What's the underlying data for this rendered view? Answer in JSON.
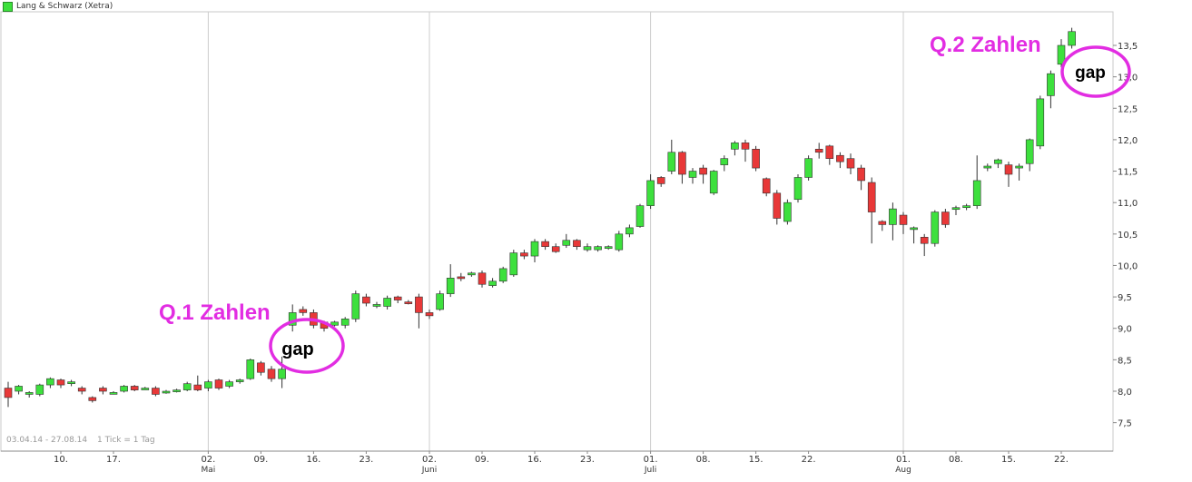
{
  "chart_data": {
    "type": "candlestick",
    "title": "",
    "legend": [
      "Lang & Schwarz (Xetra)"
    ],
    "colors": {
      "up": "#3de03d",
      "down": "#e83838",
      "wick": "#333333",
      "grid": "#cccccc",
      "annotation": "#e22de2"
    },
    "ylim": [
      7.2,
      13.8
    ],
    "yticks": [
      7.5,
      8.0,
      8.5,
      9.0,
      9.5,
      10.0,
      10.5,
      11.0,
      11.5,
      12.0,
      12.5,
      13.0,
      13.5
    ],
    "ytick_labels": [
      "7,5",
      "8,0",
      "8,5",
      "9,0",
      "9,5",
      "10,0",
      "10,5",
      "11,0",
      "11,5",
      "12,0",
      "12,5",
      "13,0",
      "13,5"
    ],
    "x_tick_labels": [
      {
        "day": "10.",
        "month": ""
      },
      {
        "day": "17.",
        "month": ""
      },
      {
        "day": "02.",
        "month": "Mai"
      },
      {
        "day": "09.",
        "month": ""
      },
      {
        "day": "16.",
        "month": ""
      },
      {
        "day": "23.",
        "month": ""
      },
      {
        "day": "02.",
        "month": "Juni"
      },
      {
        "day": "09.",
        "month": ""
      },
      {
        "day": "16.",
        "month": ""
      },
      {
        "day": "23.",
        "month": ""
      },
      {
        "day": "01.",
        "month": "Juli"
      },
      {
        "day": "08.",
        "month": ""
      },
      {
        "day": "15.",
        "month": ""
      },
      {
        "day": "22.",
        "month": ""
      },
      {
        "day": "01.",
        "month": "Aug"
      },
      {
        "day": "08.",
        "month": ""
      },
      {
        "day": "15.",
        "month": ""
      },
      {
        "day": "22.",
        "month": ""
      }
    ],
    "candles": [
      [
        8.05,
        7.9,
        8.15,
        7.75
      ],
      [
        8.0,
        8.08,
        8.1,
        7.95
      ],
      [
        7.95,
        7.98,
        8.0,
        7.9
      ],
      [
        7.95,
        8.1,
        8.12,
        7.92
      ],
      [
        8.1,
        8.2,
        8.22,
        8.05
      ],
      [
        8.18,
        8.1,
        8.2,
        8.05
      ],
      [
        8.12,
        8.15,
        8.18,
        8.08
      ],
      [
        8.05,
        8.0,
        8.08,
        7.95
      ],
      [
        7.9,
        7.85,
        7.92,
        7.82
      ],
      [
        8.05,
        8.0,
        8.08,
        7.95
      ],
      [
        7.98,
        7.98,
        8.0,
        7.95
      ],
      [
        8.0,
        8.08,
        8.1,
        7.98
      ],
      [
        8.08,
        8.02,
        8.1,
        8.0
      ],
      [
        8.05,
        8.05,
        8.07,
        8.03
      ],
      [
        8.05,
        7.95,
        8.08,
        7.92
      ],
      [
        7.98,
        8.0,
        8.02,
        7.96
      ],
      [
        8.0,
        8.02,
        8.04,
        7.98
      ],
      [
        8.02,
        8.12,
        8.15,
        8.0
      ],
      [
        8.1,
        8.02,
        8.25,
        8.0
      ],
      [
        8.05,
        8.15,
        8.18,
        8.0
      ],
      [
        8.18,
        8.05,
        8.2,
        8.02
      ],
      [
        8.08,
        8.15,
        8.18,
        8.05
      ],
      [
        8.15,
        8.18,
        8.2,
        8.12
      ],
      [
        8.2,
        8.5,
        8.52,
        8.18
      ],
      [
        8.45,
        8.3,
        8.48,
        8.25
      ],
      [
        8.35,
        8.2,
        8.4,
        8.15
      ],
      [
        8.2,
        8.35,
        8.55,
        8.05
      ],
      [
        9.05,
        9.25,
        9.38,
        8.95
      ],
      [
        9.3,
        9.25,
        9.35,
        9.2
      ],
      [
        9.25,
        9.05,
        9.3,
        9.0
      ],
      [
        9.1,
        9.0,
        9.12,
        8.95
      ],
      [
        9.05,
        9.1,
        9.12,
        9.03
      ],
      [
        9.05,
        9.15,
        9.18,
        9.0
      ],
      [
        9.15,
        9.55,
        9.6,
        9.1
      ],
      [
        9.5,
        9.4,
        9.55,
        9.35
      ],
      [
        9.35,
        9.38,
        9.42,
        9.32
      ],
      [
        9.35,
        9.48,
        9.52,
        9.3
      ],
      [
        9.5,
        9.45,
        9.52,
        9.4
      ],
      [
        9.42,
        9.4,
        9.45,
        9.38
      ],
      [
        9.5,
        9.25,
        9.55,
        9.0
      ],
      [
        9.25,
        9.2,
        9.3,
        9.15
      ],
      [
        9.3,
        9.55,
        9.6,
        9.28
      ],
      [
        9.55,
        9.8,
        10.02,
        9.5
      ],
      [
        9.82,
        9.8,
        9.88,
        9.75
      ],
      [
        9.85,
        9.88,
        9.9,
        9.82
      ],
      [
        9.88,
        9.7,
        9.92,
        9.65
      ],
      [
        9.68,
        9.75,
        9.8,
        9.65
      ],
      [
        9.75,
        9.95,
        9.98,
        9.72
      ],
      [
        9.85,
        10.2,
        10.25,
        9.82
      ],
      [
        10.2,
        10.15,
        10.25,
        10.1
      ],
      [
        10.15,
        10.38,
        10.42,
        10.05
      ],
      [
        10.38,
        10.3,
        10.42,
        10.25
      ],
      [
        10.3,
        10.22,
        10.35,
        10.2
      ],
      [
        10.32,
        10.4,
        10.5,
        10.28
      ],
      [
        10.4,
        10.3,
        10.42,
        10.25
      ],
      [
        10.25,
        10.3,
        10.35,
        10.22
      ],
      [
        10.25,
        10.3,
        10.32,
        10.22
      ],
      [
        10.28,
        10.3,
        10.32,
        10.25
      ],
      [
        10.25,
        10.5,
        10.55,
        10.22
      ],
      [
        10.5,
        10.6,
        10.65,
        10.45
      ],
      [
        10.62,
        10.95,
        10.98,
        10.6
      ],
      [
        10.95,
        11.35,
        11.45,
        10.9
      ],
      [
        11.4,
        11.3,
        11.42,
        11.25
      ],
      [
        11.5,
        11.8,
        12.0,
        11.45
      ],
      [
        11.8,
        11.45,
        11.82,
        11.3
      ],
      [
        11.4,
        11.5,
        11.55,
        11.3
      ],
      [
        11.55,
        11.45,
        11.6,
        11.3
      ],
      [
        11.15,
        11.5,
        11.52,
        11.12
      ],
      [
        11.6,
        11.7,
        11.75,
        11.5
      ],
      [
        11.85,
        11.95,
        11.98,
        11.75
      ],
      [
        11.95,
        11.85,
        12.0,
        11.65
      ],
      [
        11.85,
        11.55,
        11.9,
        11.5
      ],
      [
        11.38,
        11.15,
        11.4,
        11.1
      ],
      [
        11.15,
        10.75,
        11.2,
        10.65
      ],
      [
        10.7,
        11.0,
        11.05,
        10.65
      ],
      [
        11.05,
        11.4,
        11.45,
        11.0
      ],
      [
        11.4,
        11.7,
        11.75,
        11.35
      ],
      [
        11.85,
        11.8,
        11.95,
        11.7
      ],
      [
        11.9,
        11.7,
        11.92,
        11.6
      ],
      [
        11.75,
        11.65,
        11.8,
        11.55
      ],
      [
        11.7,
        11.55,
        11.78,
        11.45
      ],
      [
        11.55,
        11.35,
        11.6,
        11.2
      ],
      [
        11.32,
        10.85,
        11.4,
        10.35
      ],
      [
        10.7,
        10.65,
        10.72,
        10.55
      ],
      [
        10.65,
        10.9,
        11.0,
        10.4
      ],
      [
        10.8,
        10.65,
        10.85,
        10.5
      ],
      [
        10.6,
        10.6,
        10.62,
        10.35
      ],
      [
        10.45,
        10.35,
        10.5,
        10.15
      ],
      [
        10.35,
        10.85,
        10.88,
        10.3
      ],
      [
        10.85,
        10.65,
        10.9,
        10.6
      ],
      [
        10.9,
        10.92,
        10.95,
        10.8
      ],
      [
        10.92,
        10.95,
        10.98,
        10.88
      ],
      [
        10.95,
        11.35,
        11.75,
        10.9
      ],
      [
        11.55,
        11.58,
        11.62,
        11.5
      ],
      [
        11.62,
        11.68,
        11.7,
        11.55
      ],
      [
        11.6,
        11.45,
        11.65,
        11.25
      ],
      [
        11.55,
        11.58,
        11.62,
        11.35
      ],
      [
        11.62,
        12.0,
        12.02,
        11.5
      ],
      [
        11.9,
        12.65,
        12.7,
        11.85
      ],
      [
        12.7,
        13.05,
        13.1,
        12.5
      ],
      [
        13.2,
        13.5,
        13.6,
        13.15
      ],
      [
        13.5,
        13.72,
        13.78,
        13.45
      ]
    ],
    "annotations": {
      "q1_label": "Q.1 Zahlen",
      "q1_gap": "gap",
      "q2_label": "Q.2 Zahlen",
      "q2_gap": "gap"
    }
  },
  "footer": {
    "range": "03.04.14 - 27.08.14",
    "tick": "1 Tick = 1 Tag"
  }
}
